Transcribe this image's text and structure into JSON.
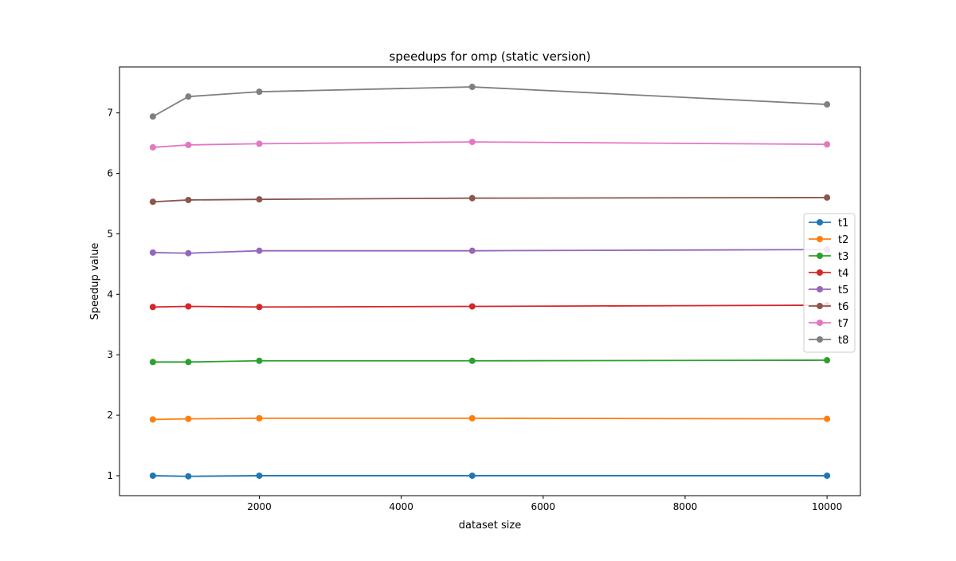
{
  "chart_data": {
    "type": "line",
    "title": "speedups for omp (static version)",
    "xlabel": "dataset size",
    "ylabel": "Speedup value",
    "xlim": [
      30,
      10470
    ],
    "ylim": [
      0.67,
      7.76
    ],
    "xticks": [
      2000,
      4000,
      6000,
      8000,
      10000
    ],
    "yticks": [
      1,
      2,
      3,
      4,
      5,
      6,
      7
    ],
    "grid": false,
    "legend_position": "center-right",
    "x": [
      500,
      1000,
      2000,
      5000,
      10000
    ],
    "series": [
      {
        "name": "t1",
        "color": "#1f77b4",
        "values": [
          1.0,
          0.99,
          1.0,
          1.0,
          1.0
        ]
      },
      {
        "name": "t2",
        "color": "#ff7f0e",
        "values": [
          1.93,
          1.94,
          1.95,
          1.95,
          1.94
        ]
      },
      {
        "name": "t3",
        "color": "#2ca02c",
        "values": [
          2.88,
          2.88,
          2.9,
          2.9,
          2.91
        ]
      },
      {
        "name": "t4",
        "color": "#d62728",
        "values": [
          3.79,
          3.8,
          3.79,
          3.8,
          3.82
        ]
      },
      {
        "name": "t5",
        "color": "#9467bd",
        "values": [
          4.69,
          4.68,
          4.72,
          4.72,
          4.74
        ]
      },
      {
        "name": "t6",
        "color": "#8c564b",
        "values": [
          5.53,
          5.56,
          5.57,
          5.59,
          5.6
        ]
      },
      {
        "name": "t7",
        "color": "#e377c2",
        "values": [
          6.43,
          6.47,
          6.49,
          6.52,
          6.48
        ]
      },
      {
        "name": "t8",
        "color": "#7f7f7f",
        "values": [
          6.94,
          7.27,
          7.35,
          7.43,
          7.14
        ]
      }
    ]
  }
}
